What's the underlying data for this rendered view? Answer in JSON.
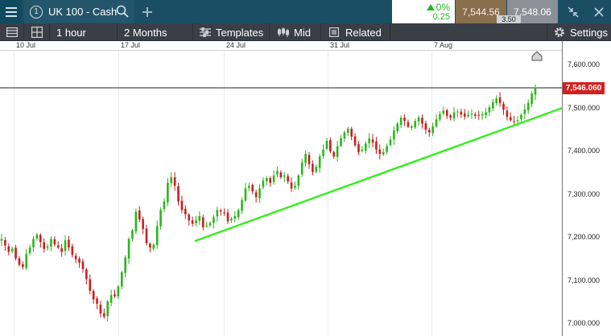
{
  "topbar": {
    "menu_icon": "hamburger-icon",
    "instrument": {
      "number": "1",
      "name": "UK 100 - Cash"
    },
    "search_icon": "search-icon",
    "add_icon": "plus-icon",
    "change_percent": "0%",
    "change_value": "0.25",
    "sell_price": "7,544.56",
    "buy_price": "7,548.06",
    "spread": "3.50",
    "window_icons": [
      "shrink-icon",
      "close-icon"
    ]
  },
  "toolbar": {
    "layout_icon": "layout-icon",
    "grid_icon": "grid-icon",
    "interval": "1 hour",
    "range": "2 Months",
    "templates_label": "Templates",
    "price_type_label": "Mid",
    "related_label": "Related",
    "settings_label": "Settings"
  },
  "chart_data": {
    "type": "candlestick",
    "date_labels": [
      "10 Jul",
      "17 Jul",
      "24 Jul",
      "31 Jul",
      "7 Aug"
    ],
    "price_labels": [
      "7,600.000",
      "7,500.000",
      "7,400.000",
      "7,300.000",
      "7,200.000",
      "7,100.000",
      "7,000.000"
    ],
    "current_price": "7,546.060",
    "ylim": [
      6970,
      7655
    ],
    "trendline": {
      "start": 7190,
      "end": 7498
    },
    "close_series": [
      7195,
      7180,
      7165,
      7172,
      7150,
      7135,
      7130,
      7160,
      7175,
      7195,
      7205,
      7188,
      7172,
      7178,
      7195,
      7182,
      7175,
      7165,
      7192,
      7175,
      7158,
      7148,
      7140,
      7125,
      7102,
      7075,
      7055,
      7045,
      7022,
      7015,
      7050,
      7065,
      7062,
      7085,
      7118,
      7152,
      7195,
      7215,
      7258,
      7240,
      7218,
      7185,
      7175,
      7182,
      7225,
      7262,
      7282,
      7325,
      7338,
      7318,
      7282,
      7262,
      7252,
      7238,
      7230,
      7238,
      7248,
      7222,
      7226,
      7232,
      7245,
      7262,
      7258,
      7254,
      7236,
      7242,
      7248,
      7262,
      7285,
      7312,
      7318,
      7305,
      7292,
      7312,
      7330,
      7336,
      7325,
      7342,
      7352,
      7338,
      7342,
      7328,
      7312,
      7318,
      7342,
      7372,
      7392,
      7368,
      7350,
      7362,
      7386,
      7402,
      7422,
      7398,
      7386,
      7410,
      7428,
      7442,
      7450,
      7432,
      7412,
      7396,
      7402,
      7416,
      7428,
      7418,
      7402,
      7392,
      7396,
      7410,
      7425,
      7446,
      7462,
      7476,
      7468,
      7455,
      7456,
      7468,
      7476,
      7462,
      7448,
      7442,
      7456,
      7472,
      7484,
      7492,
      7480,
      7476,
      7488,
      7490,
      7483,
      7478,
      7482,
      7485,
      7480,
      7482,
      7484,
      7488,
      7500,
      7512,
      7520,
      7510,
      7494,
      7478,
      7470,
      7466,
      7470,
      7482,
      7495,
      7510,
      7532,
      7546
    ]
  }
}
